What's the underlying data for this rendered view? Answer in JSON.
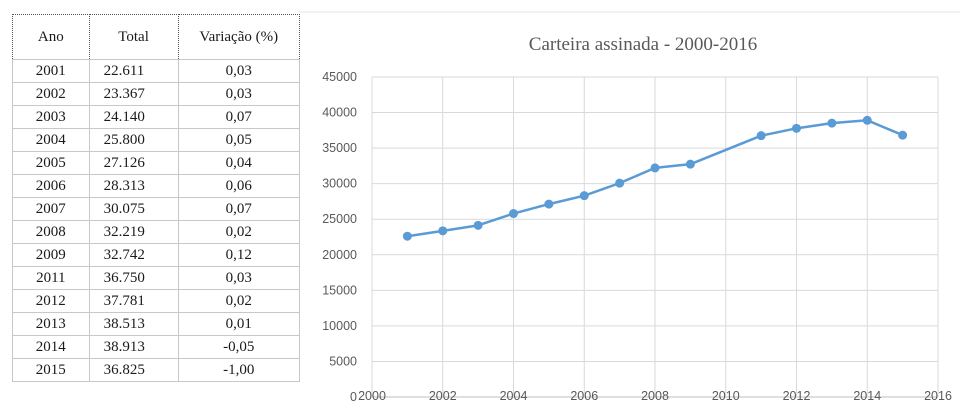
{
  "table": {
    "headers": [
      "Ano",
      "Total",
      "Variação (%)"
    ],
    "rows": [
      [
        "2001",
        "22.611",
        "0,03"
      ],
      [
        "2002",
        "23.367",
        "0,03"
      ],
      [
        "2003",
        "24.140",
        "0,07"
      ],
      [
        "2004",
        "25.800",
        "0,05"
      ],
      [
        "2005",
        "27.126",
        "0,04"
      ],
      [
        "2006",
        "28.313",
        "0,06"
      ],
      [
        "2007",
        "30.075",
        "0,07"
      ],
      [
        "2008",
        "32.219",
        "0,02"
      ],
      [
        "2009",
        "32.742",
        "0,12"
      ],
      [
        "2011",
        "36.750",
        "0,03"
      ],
      [
        "2012",
        "37.781",
        "0,02"
      ],
      [
        "2013",
        "38.513",
        "0,01"
      ],
      [
        "2014",
        "38.913",
        "-0,05"
      ],
      [
        "2015",
        "36.825",
        "-1,00"
      ]
    ]
  },
  "chart_data": {
    "type": "line",
    "title": "Carteira assinada - 2000-2016",
    "xlabel": "",
    "ylabel": "",
    "x": [
      2001,
      2002,
      2003,
      2004,
      2005,
      2006,
      2007,
      2008,
      2009,
      2011,
      2012,
      2013,
      2014,
      2015
    ],
    "series": [
      {
        "values": [
          22611,
          23367,
          24140,
          25800,
          27126,
          28313,
          30075,
          32219,
          32742,
          36750,
          37781,
          38513,
          38913,
          36825
        ],
        "color": "#5b9bd5"
      }
    ],
    "xlim": [
      2000,
      2016
    ],
    "ylim": [
      0,
      45000
    ],
    "xticks": [
      2000,
      2002,
      2004,
      2006,
      2008,
      2010,
      2012,
      2014,
      2016
    ],
    "yticks": [
      0,
      5000,
      10000,
      15000,
      20000,
      25000,
      30000,
      35000,
      40000,
      45000
    ],
    "grid": true,
    "legend": "none",
    "colors": {
      "line": "#5b9bd5",
      "grid": "#d9d9d9",
      "text": "#595959"
    }
  }
}
